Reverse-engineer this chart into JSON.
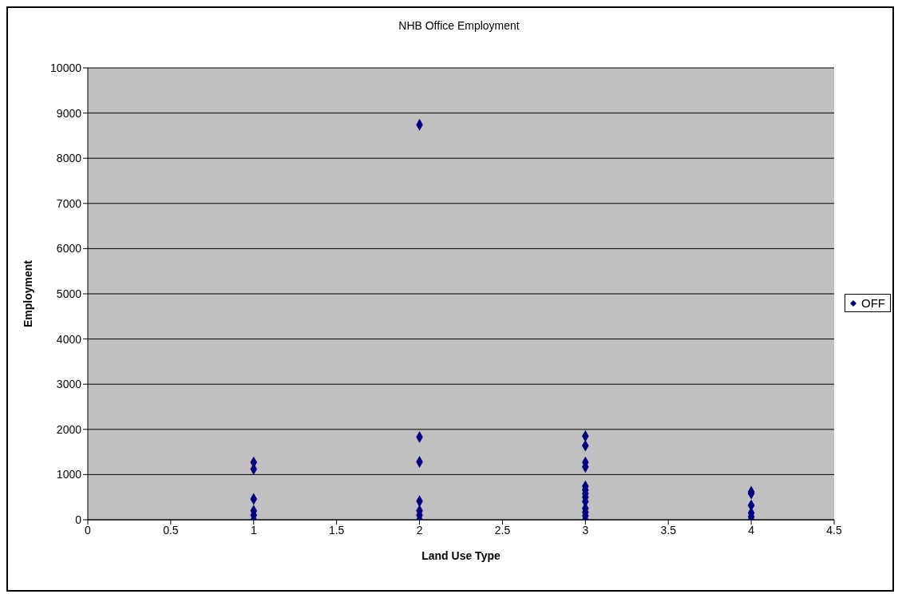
{
  "chart_data": {
    "type": "scatter",
    "title": "NHB Office Employment",
    "xlabel": "Land Use Type",
    "ylabel": "Employment",
    "xlim": [
      0,
      4.5
    ],
    "xticks": [
      0,
      0.5,
      1,
      1.5,
      2,
      2.5,
      3,
      3.5,
      4,
      4.5
    ],
    "ylim": [
      0,
      10000
    ],
    "yticks": [
      0,
      1000,
      2000,
      3000,
      4000,
      5000,
      6000,
      7000,
      8000,
      9000,
      10000
    ],
    "grid": "y",
    "legend": "right",
    "marker": "diamond",
    "series": [
      {
        "name": "OFF",
        "color": "#000080",
        "x": [
          1,
          1,
          1,
          1,
          1,
          1,
          2,
          2,
          2,
          2,
          2,
          2,
          2,
          3,
          3,
          3,
          3,
          3,
          3,
          3,
          3,
          3,
          3,
          3,
          3,
          3,
          4,
          4,
          4,
          4,
          4,
          4
        ],
        "values": [
          1270,
          1120,
          460,
          200,
          100,
          0,
          8740,
          1830,
          1280,
          410,
          200,
          100,
          0,
          1850,
          1640,
          1270,
          1170,
          740,
          660,
          580,
          500,
          400,
          250,
          170,
          90,
          0,
          620,
          580,
          320,
          150,
          70,
          0
        ]
      }
    ]
  }
}
